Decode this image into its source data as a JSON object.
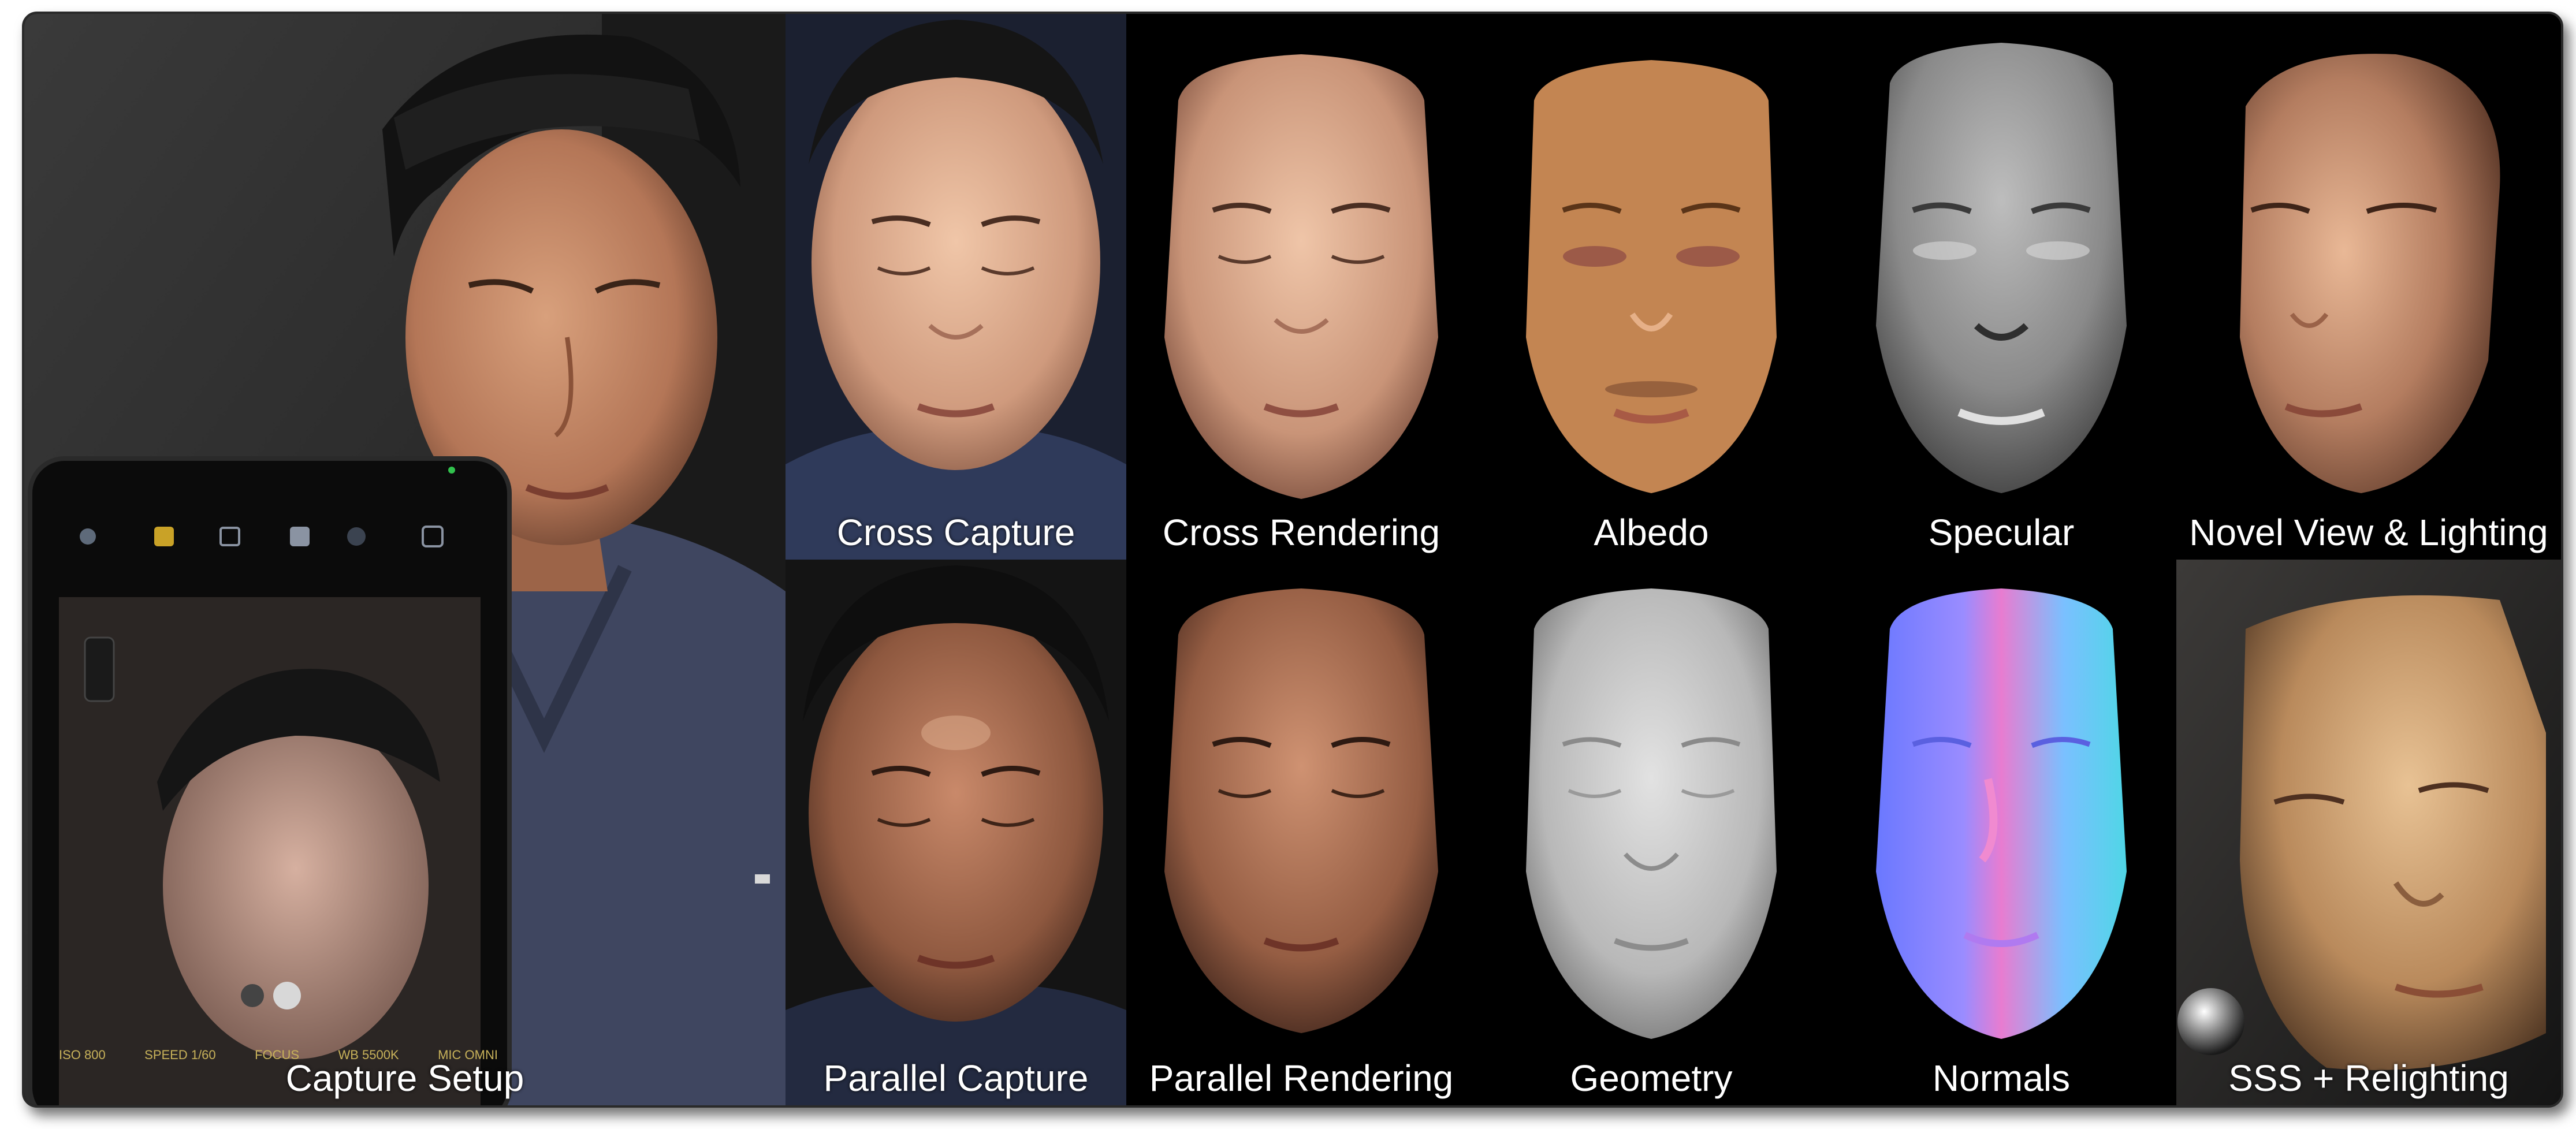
{
  "figure": {
    "panels": [
      {
        "id": "capture-setup",
        "caption": "Capture Setup"
      },
      {
        "id": "cross-capture",
        "caption": "Cross Capture"
      },
      {
        "id": "parallel-capture",
        "caption": "Parallel Capture"
      },
      {
        "id": "cross-rendering",
        "caption": "Cross Rendering"
      },
      {
        "id": "parallel-rendering",
        "caption": "Parallel Rendering"
      },
      {
        "id": "albedo",
        "caption": "Albedo"
      },
      {
        "id": "geometry",
        "caption": "Geometry"
      },
      {
        "id": "specular",
        "caption": "Specular"
      },
      {
        "id": "normals",
        "caption": "Normals"
      },
      {
        "id": "novel-view",
        "caption": "Novel View & Lighting"
      },
      {
        "id": "sss-relighting",
        "caption": "SSS + Relighting"
      }
    ]
  },
  "phone": {
    "mode_labels": [
      "ISO 800",
      "SPEED 1/60",
      "FOCUS",
      "WB 5500K",
      "MIC OMNI"
    ]
  },
  "colors": {
    "background": "#000000",
    "skin_warm": "#c98f6d",
    "skin_dark": "#7a4a33",
    "albedo": "#c38552",
    "geometry": "#c9c9c9",
    "specular": "#8a8a8a",
    "caption_text": "#ffffff"
  }
}
